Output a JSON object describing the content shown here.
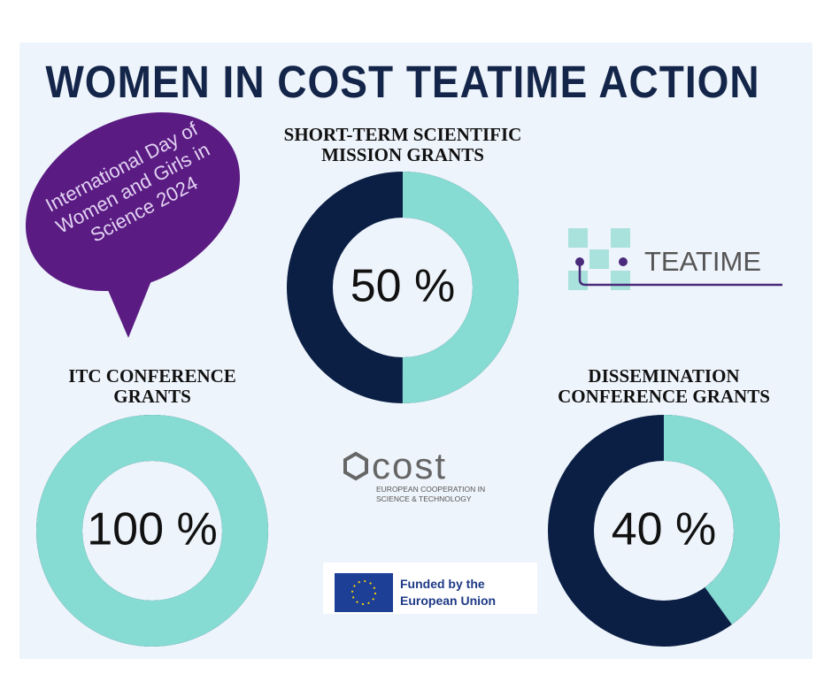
{
  "title": "WOMEN IN COST TEATIME ACTION",
  "bubble": "International Day of Women and Girls in Science 2024",
  "logos": {
    "teatime": "TEATIME",
    "cost": "cost",
    "cost_tagline": "EUROPEAN COOPERATION IN SCIENCE & TECHNOLOGY",
    "eu": "Funded by the European Union"
  },
  "chart_data": [
    {
      "type": "donut",
      "title": "SHORT-TERM SCIENTIFIC MISSION GRANTS",
      "values": [
        50
      ],
      "value_labels": [
        "50 %"
      ],
      "color": "#86dbd3",
      "track_color": "#0b1f45"
    },
    {
      "type": "donut",
      "title": "ITC CONFERENCE GRANTS",
      "values": [
        100
      ],
      "value_labels": [
        "100 %"
      ],
      "color": "#86dbd3",
      "track_color": "#0b1f45"
    },
    {
      "type": "donut",
      "title": "DISSEMINATION CONFERENCE GRANTS",
      "values": [
        40
      ],
      "value_labels": [
        "40 %"
      ],
      "color": "#86dbd3",
      "track_color": "#0b1f45"
    }
  ]
}
